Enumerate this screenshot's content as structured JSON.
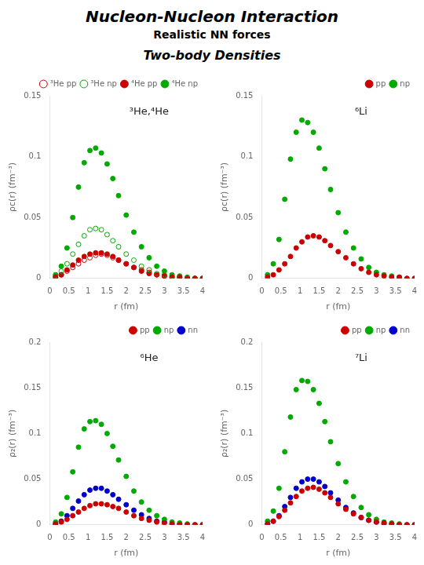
{
  "title": "Nucleon-Nucleon Interaction",
  "subtitle": "Realistic NN forces",
  "section_title": "Two-body Densities",
  "chart_data": [
    {
      "type": "scatter",
      "annotations": [
        "³He,⁴He"
      ],
      "x_label": "r (fm)",
      "y_label": "ρc(r) (fm⁻³)",
      "xlim": [
        0,
        4
      ],
      "xticks": [
        0,
        0.5,
        1,
        1.5,
        2,
        2.5,
        3,
        3.5,
        4
      ],
      "ylim": [
        0.0,
        0.15
      ],
      "yticks": [
        0.0,
        0.05,
        0.1,
        0.15
      ],
      "grid": false,
      "legend": "upper right",
      "x": [
        0.15,
        0.3,
        0.45,
        0.6,
        0.75,
        0.9,
        1.05,
        1.2,
        1.35,
        1.5,
        1.65,
        1.8,
        2.0,
        2.2,
        2.4,
        2.6,
        2.8,
        3.0,
        3.2,
        3.4,
        3.6,
        3.8,
        4.0
      ],
      "series": [
        {
          "name": "³He pp",
          "color": "#cc0000",
          "marker": "open_circle",
          "values": [
            0.001,
            0.003,
            0.006,
            0.009,
            0.012,
            0.015,
            0.017,
            0.019,
            0.02,
            0.019,
            0.017,
            0.015,
            0.012,
            0.009,
            0.007,
            0.005,
            0.003,
            0.002,
            0.001,
            0.001,
            0.0,
            0.0,
            0.0
          ]
        },
        {
          "name": "³He np",
          "color": "#00aa00",
          "marker": "open_circle",
          "values": [
            0.002,
            0.006,
            0.012,
            0.02,
            0.028,
            0.035,
            0.04,
            0.041,
            0.04,
            0.036,
            0.031,
            0.026,
            0.02,
            0.015,
            0.01,
            0.007,
            0.004,
            0.003,
            0.002,
            0.001,
            0.0,
            0.0,
            0.0
          ]
        },
        {
          "name": "⁴He pp",
          "color": "#cc0000",
          "marker": "circle",
          "values": [
            0.001,
            0.003,
            0.007,
            0.011,
            0.015,
            0.018,
            0.02,
            0.021,
            0.021,
            0.02,
            0.018,
            0.015,
            0.012,
            0.009,
            0.006,
            0.004,
            0.003,
            0.002,
            0.001,
            0.001,
            0.0,
            0.0,
            0.0
          ]
        },
        {
          "name": "⁴He np",
          "color": "#00aa00",
          "marker": "circle",
          "values": [
            0.003,
            0.01,
            0.025,
            0.05,
            0.075,
            0.095,
            0.105,
            0.107,
            0.103,
            0.094,
            0.082,
            0.068,
            0.052,
            0.038,
            0.026,
            0.017,
            0.01,
            0.006,
            0.003,
            0.002,
            0.001,
            0.0,
            0.0
          ]
        }
      ]
    },
    {
      "type": "scatter",
      "annotations": [
        "⁶Li"
      ],
      "x_label": "r (fm)",
      "y_label": "ρc(r) (fm⁻³)",
      "xlim": [
        0,
        4
      ],
      "xticks": [
        0,
        0.5,
        1,
        1.5,
        2,
        2.5,
        3,
        3.5,
        4
      ],
      "ylim": [
        0.0,
        0.15
      ],
      "yticks": [
        0.0,
        0.05,
        0.1,
        0.15
      ],
      "grid": false,
      "legend": "upper right",
      "x": [
        0.15,
        0.3,
        0.45,
        0.6,
        0.75,
        0.9,
        1.05,
        1.2,
        1.35,
        1.5,
        1.65,
        1.8,
        2.0,
        2.2,
        2.4,
        2.6,
        2.8,
        3.0,
        3.2,
        3.4,
        3.6,
        3.8,
        4.0
      ],
      "series": [
        {
          "name": "pp",
          "color": "#cc0000",
          "marker": "circle",
          "values": [
            0.001,
            0.003,
            0.007,
            0.012,
            0.018,
            0.025,
            0.03,
            0.034,
            0.035,
            0.034,
            0.031,
            0.027,
            0.022,
            0.017,
            0.012,
            0.008,
            0.005,
            0.003,
            0.002,
            0.001,
            0.001,
            0.0,
            0.0
          ]
        },
        {
          "name": "np",
          "color": "#00aa00",
          "marker": "circle",
          "values": [
            0.003,
            0.012,
            0.032,
            0.065,
            0.098,
            0.12,
            0.13,
            0.128,
            0.12,
            0.107,
            0.09,
            0.073,
            0.054,
            0.038,
            0.025,
            0.016,
            0.009,
            0.005,
            0.003,
            0.002,
            0.001,
            0.0,
            0.0
          ]
        }
      ]
    },
    {
      "type": "scatter",
      "annotations": [
        "⁶He"
      ],
      "x_label": "r (fm)",
      "y_label": "ρ₂(r) (fm⁻³)",
      "xlim": [
        0,
        4
      ],
      "xticks": [
        0,
        0.5,
        1,
        1.5,
        2,
        2.5,
        3,
        3.5,
        4
      ],
      "ylim": [
        0.0,
        0.2
      ],
      "yticks": [
        0.0,
        0.05,
        0.1,
        0.15,
        0.2
      ],
      "grid": false,
      "legend": "upper right",
      "x": [
        0.15,
        0.3,
        0.45,
        0.6,
        0.75,
        0.9,
        1.05,
        1.2,
        1.35,
        1.5,
        1.65,
        1.8,
        2.0,
        2.2,
        2.4,
        2.6,
        2.8,
        3.0,
        3.2,
        3.4,
        3.6,
        3.8,
        4.0
      ],
      "series": [
        {
          "name": "pp",
          "color": "#cc0000",
          "marker": "circle",
          "values": [
            0.001,
            0.003,
            0.006,
            0.01,
            0.014,
            0.018,
            0.021,
            0.023,
            0.023,
            0.022,
            0.02,
            0.018,
            0.014,
            0.01,
            0.007,
            0.005,
            0.003,
            0.002,
            0.001,
            0.0,
            0.0,
            0.0,
            0.0
          ]
        },
        {
          "name": "np",
          "color": "#00aa00",
          "marker": "circle",
          "values": [
            0.003,
            0.012,
            0.03,
            0.058,
            0.085,
            0.105,
            0.113,
            0.114,
            0.11,
            0.1,
            0.086,
            0.071,
            0.053,
            0.037,
            0.025,
            0.016,
            0.01,
            0.006,
            0.003,
            0.002,
            0.001,
            0.0,
            0.0
          ]
        },
        {
          "name": "nn",
          "color": "#0000cc",
          "marker": "circle",
          "values": [
            0.001,
            0.004,
            0.01,
            0.018,
            0.026,
            0.033,
            0.038,
            0.04,
            0.04,
            0.037,
            0.033,
            0.028,
            0.022,
            0.016,
            0.011,
            0.007,
            0.004,
            0.003,
            0.001,
            0.001,
            0.0,
            0.0,
            0.0
          ]
        }
      ]
    },
    {
      "type": "scatter",
      "annotations": [
        "⁷Li"
      ],
      "x_label": "r (fm)",
      "y_label": "ρ₂(r) (fm⁻³)",
      "xlim": [
        0,
        4
      ],
      "xticks": [
        0,
        0.5,
        1,
        1.5,
        2,
        2.5,
        3,
        3.5,
        4
      ],
      "ylim": [
        0.0,
        0.2
      ],
      "yticks": [
        0.0,
        0.05,
        0.1,
        0.15,
        0.2
      ],
      "grid": false,
      "legend": "upper right",
      "x": [
        0.15,
        0.3,
        0.45,
        0.6,
        0.75,
        0.9,
        1.05,
        1.2,
        1.35,
        1.5,
        1.65,
        1.8,
        2.0,
        2.2,
        2.4,
        2.6,
        2.8,
        3.0,
        3.2,
        3.4,
        3.6,
        3.8,
        4.0
      ],
      "series": [
        {
          "name": "pp",
          "color": "#cc0000",
          "marker": "circle",
          "values": [
            0.001,
            0.004,
            0.009,
            0.016,
            0.024,
            0.031,
            0.037,
            0.04,
            0.041,
            0.039,
            0.035,
            0.03,
            0.023,
            0.017,
            0.012,
            0.008,
            0.005,
            0.003,
            0.002,
            0.001,
            0.0,
            0.0,
            0.0
          ]
        },
        {
          "name": "np",
          "color": "#00aa00",
          "marker": "circle",
          "values": [
            0.004,
            0.015,
            0.04,
            0.08,
            0.118,
            0.148,
            0.158,
            0.157,
            0.148,
            0.133,
            0.113,
            0.091,
            0.067,
            0.047,
            0.031,
            0.019,
            0.011,
            0.006,
            0.003,
            0.002,
            0.001,
            0.0,
            0.0
          ]
        },
        {
          "name": "nn",
          "color": "#0000cc",
          "marker": "circle",
          "values": [
            0.001,
            0.004,
            0.01,
            0.02,
            0.03,
            0.04,
            0.047,
            0.05,
            0.05,
            0.047,
            0.042,
            0.035,
            0.027,
            0.019,
            0.013,
            0.008,
            0.005,
            0.003,
            0.001,
            0.001,
            0.0,
            0.0,
            0.0
          ]
        }
      ]
    }
  ]
}
